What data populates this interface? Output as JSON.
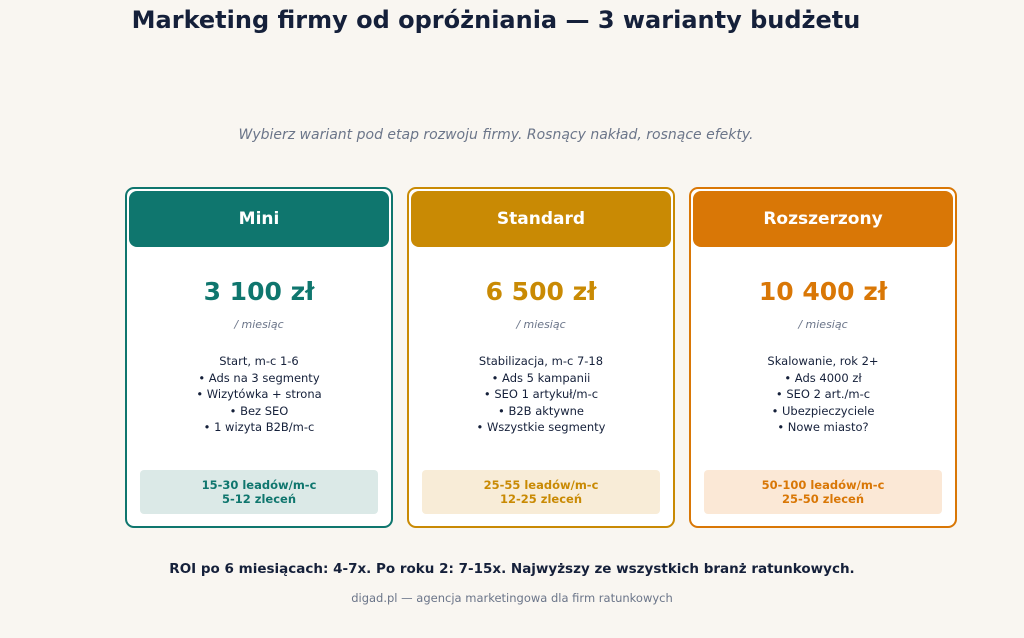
{
  "header": {
    "title": "Marketing firmy od opróżniania — 3 warianty budżetu",
    "subtitle": "Wybierz wariant pod etap rozwoju firmy. Rosnący nakład, rosnące efekty."
  },
  "plans": [
    {
      "name": "Mini",
      "price": "3 100 zł",
      "period": "/ miesiąc",
      "lines": [
        "Start, m-c 1-6",
        "• Ads na 3 segmenty",
        "• Wizytówka + strona",
        "• Bez SEO",
        "• 1 wizyta B2B/m-c"
      ],
      "results": [
        "15-30 leadów/m-c",
        "5-12 zleceń"
      ]
    },
    {
      "name": "Standard",
      "price": "6 500 zł",
      "period": "/ miesiąc",
      "lines": [
        "Stabilizacja, m-c 7-18",
        "• Ads 5 kampanii",
        "• SEO 1 artykuł/m-c",
        "• B2B aktywne",
        "• Wszystkie segmenty"
      ],
      "results": [
        "25-55 leadów/m-c",
        "12-25 zleceń"
      ]
    },
    {
      "name": "Rozszerzony",
      "price": "10 400 zł",
      "period": "/ miesiąc",
      "lines": [
        "Skalowanie, rok 2+",
        "• Ads 4000 zł",
        "• SEO 2 art./m-c",
        "• Ubezpieczyciele",
        "• Nowe miasto?"
      ],
      "results": [
        "50-100 leadów/m-c",
        "25-50 zleceń"
      ]
    }
  ],
  "footer": {
    "roi": "ROI po 6 miesiącach: 4-7x. Po roku 2: 7-15x. Najwyższy ze wszystkich branż ratunkowych.",
    "credit": "digad.pl — agencja marketingowa dla firm ratunkowych"
  }
}
